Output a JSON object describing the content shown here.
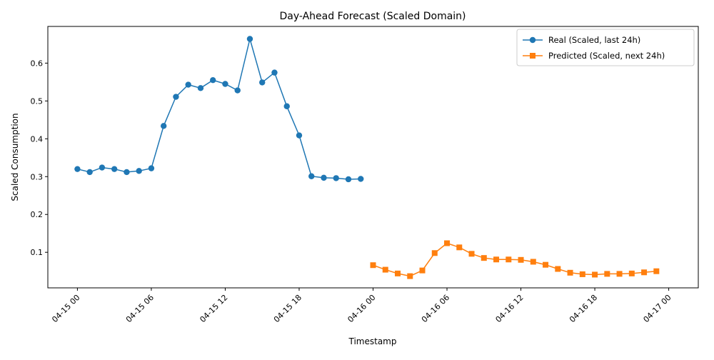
{
  "chart_data": {
    "type": "line",
    "title": "Day-Ahead Forecast (Scaled Domain)",
    "xlabel": "Timestamp",
    "ylabel": "Scaled Consumption",
    "x_tick_labels": [
      "04-15 00",
      "04-15 06",
      "04-15 12",
      "04-15 18",
      "04-16 00",
      "04-16 06",
      "04-16 12",
      "04-16 18",
      "04-17 00"
    ],
    "y_ticks": [
      0.1,
      0.2,
      0.3,
      0.4,
      0.5,
      0.6
    ],
    "y_tick_labels": [
      "0.1",
      "0.2",
      "0.3",
      "0.4",
      "0.5",
      "0.6"
    ],
    "ylim": [
      0.006,
      0.697
    ],
    "xlim_hours": [
      -2.4,
      50.4
    ],
    "legend_position": "top-right",
    "grid": false,
    "series": [
      {
        "name": "Real (Scaled, last 24h)",
        "color": "#1f77b4",
        "marker": "circle",
        "start": "04-15 00",
        "step_hours": 1,
        "values": [
          0.32,
          0.312,
          0.324,
          0.32,
          0.312,
          0.315,
          0.322,
          0.434,
          0.511,
          0.543,
          0.534,
          0.555,
          0.545,
          0.528,
          0.664,
          0.549,
          0.575,
          0.486,
          0.409,
          0.301,
          0.297,
          0.296,
          0.293,
          0.294
        ]
      },
      {
        "name": "Predicted (Scaled, next 24h)",
        "color": "#ff7f0e",
        "marker": "square",
        "start": "04-16 00",
        "step_hours": 1,
        "values": [
          0.066,
          0.054,
          0.044,
          0.037,
          0.052,
          0.098,
          0.124,
          0.113,
          0.096,
          0.085,
          0.081,
          0.081,
          0.08,
          0.075,
          0.067,
          0.056,
          0.046,
          0.042,
          0.041,
          0.043,
          0.043,
          0.044,
          0.047,
          0.05
        ]
      }
    ]
  }
}
